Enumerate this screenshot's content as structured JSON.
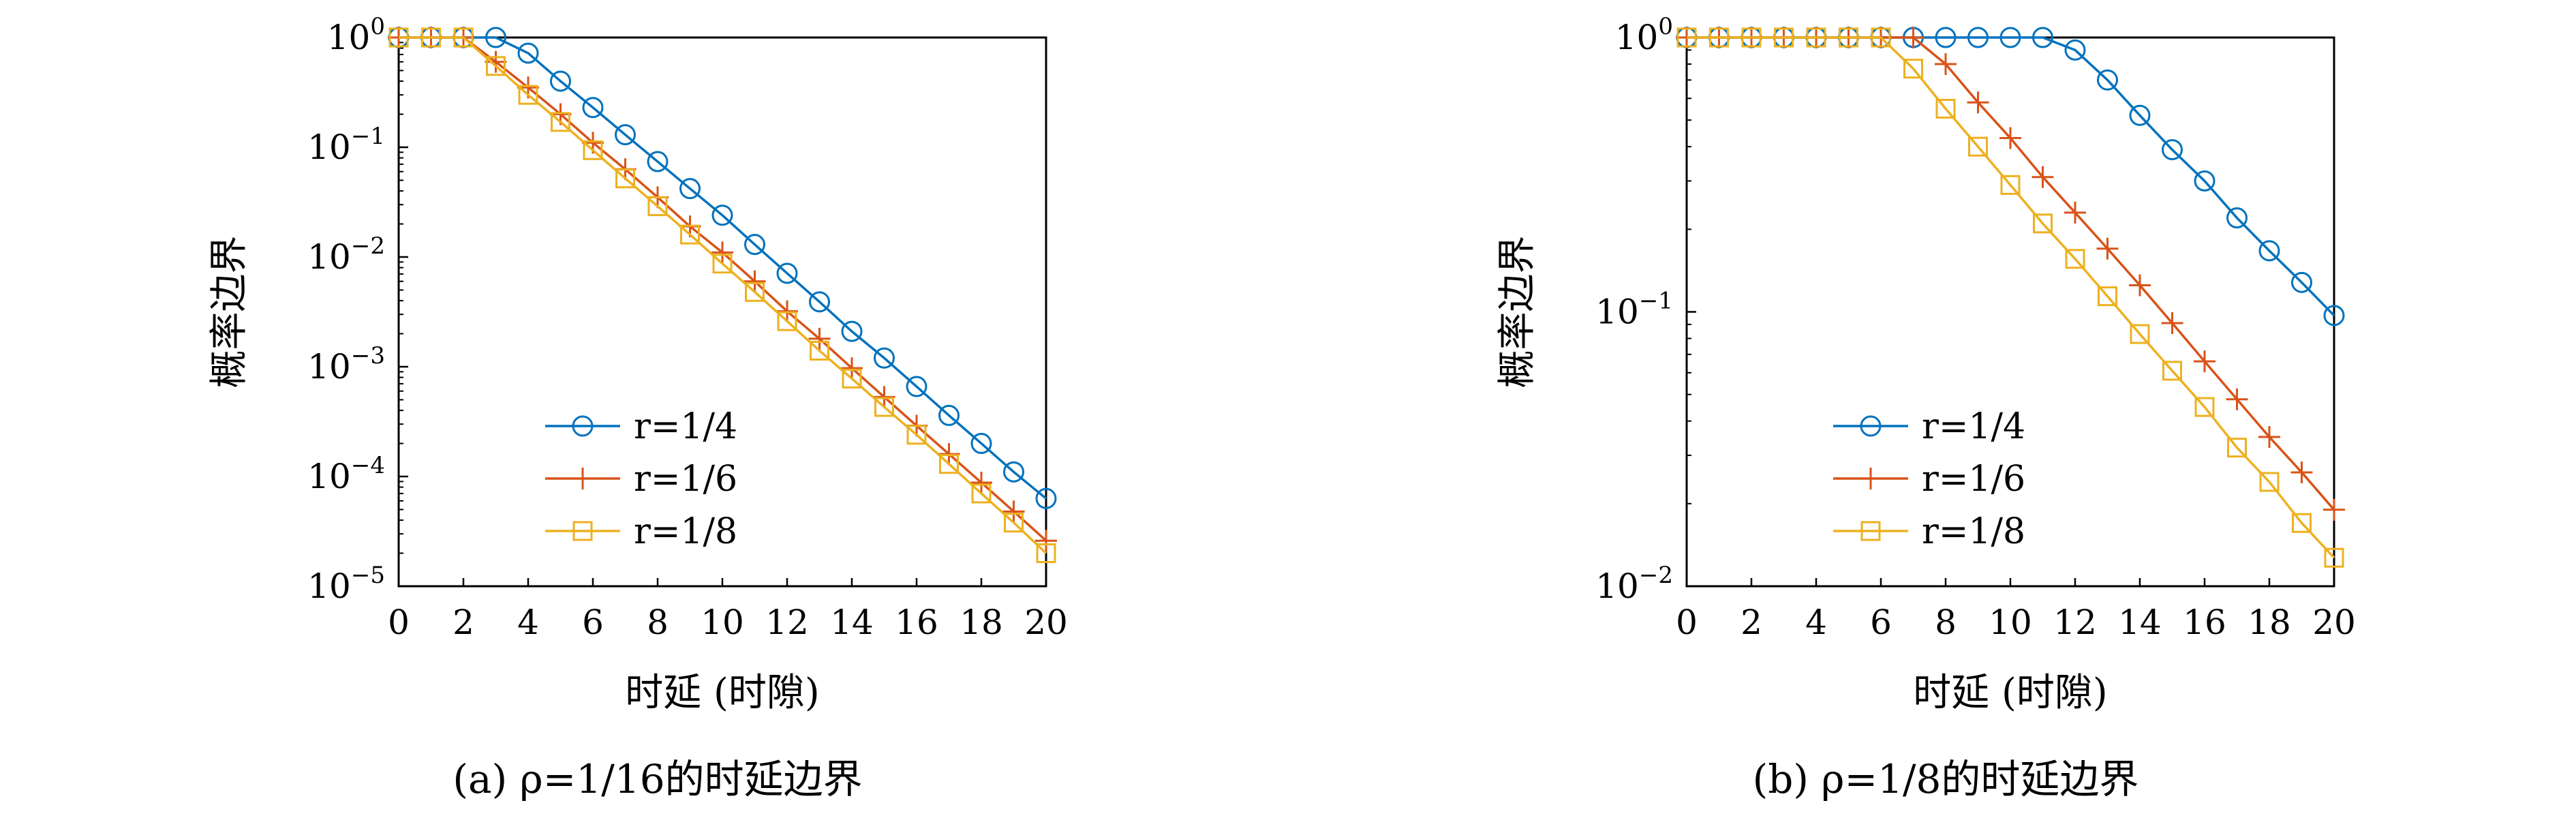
{
  "chart_data": [
    {
      "type": "line",
      "caption": "(a) ρ=1/16的时延边界",
      "xlabel": "时延 (时隙)",
      "ylabel": "概率边界",
      "xlim": [
        0,
        20
      ],
      "ylim": [
        1e-05,
        1
      ],
      "y_scale": "log",
      "x": [
        0,
        1,
        2,
        3,
        4,
        5,
        6,
        7,
        8,
        9,
        10,
        11,
        12,
        13,
        14,
        15,
        16,
        17,
        18,
        19,
        20
      ],
      "xticks": [
        0,
        2,
        4,
        6,
        8,
        10,
        12,
        14,
        16,
        18,
        20
      ],
      "yticks": [
        1e-05,
        0.0001,
        0.001,
        0.01,
        0.1,
        1
      ],
      "ytick_labels": [
        {
          "base": "10",
          "exp": "−5"
        },
        {
          "base": "10",
          "exp": "−4"
        },
        {
          "base": "10",
          "exp": "−3"
        },
        {
          "base": "10",
          "exp": "−2"
        },
        {
          "base": "10",
          "exp": "−1"
        },
        {
          "base": "10",
          "exp": "0"
        }
      ],
      "legend_position": "lower-left",
      "series": [
        {
          "name": "r=1/4",
          "marker": "circle",
          "color": "#0072BD",
          "values": [
            1,
            1,
            1,
            1,
            0.72,
            0.4,
            0.23,
            0.13,
            0.074,
            0.042,
            0.024,
            0.013,
            0.0071,
            0.0039,
            0.0021,
            0.0012,
            0.00066,
            0.00036,
            0.0002,
            0.00011,
            6.3e-05
          ]
        },
        {
          "name": "r=1/6",
          "marker": "plus",
          "color": "#D95319",
          "values": [
            1,
            1,
            1,
            0.6,
            0.35,
            0.2,
            0.11,
            0.063,
            0.035,
            0.019,
            0.011,
            0.006,
            0.0032,
            0.0018,
            0.00097,
            0.00053,
            0.00029,
            0.00016,
            8.8e-05,
            4.8e-05,
            2.6e-05
          ]
        },
        {
          "name": "r=1/8",
          "marker": "square",
          "color": "#EDB120",
          "values": [
            1,
            1,
            1,
            0.55,
            0.3,
            0.17,
            0.094,
            0.052,
            0.029,
            0.016,
            0.0087,
            0.0048,
            0.0026,
            0.0014,
            0.00078,
            0.00043,
            0.00024,
            0.00013,
            7e-05,
            3.8e-05,
            2e-05
          ]
        }
      ]
    },
    {
      "type": "line",
      "caption": "(b) ρ=1/8的时延边界",
      "xlabel": "时延 (时隙)",
      "ylabel": "概率边界",
      "xlim": [
        0,
        20
      ],
      "ylim": [
        0.01,
        1
      ],
      "y_scale": "log",
      "x": [
        0,
        1,
        2,
        3,
        4,
        5,
        6,
        7,
        8,
        9,
        10,
        11,
        12,
        13,
        14,
        15,
        16,
        17,
        18,
        19,
        20
      ],
      "xticks": [
        0,
        2,
        4,
        6,
        8,
        10,
        12,
        14,
        16,
        18,
        20
      ],
      "yticks": [
        0.01,
        0.1,
        1
      ],
      "ytick_labels": [
        {
          "base": "10",
          "exp": "−2"
        },
        {
          "base": "10",
          "exp": "−1"
        },
        {
          "base": "10",
          "exp": "0"
        }
      ],
      "legend_position": "lower-left",
      "series": [
        {
          "name": "r=1/4",
          "marker": "circle",
          "color": "#0072BD",
          "values": [
            1,
            1,
            1,
            1,
            1,
            1,
            1,
            1,
            1,
            1,
            1,
            1,
            0.9,
            0.7,
            0.52,
            0.39,
            0.3,
            0.22,
            0.167,
            0.128,
            0.097
          ]
        },
        {
          "name": "r=1/6",
          "marker": "plus",
          "color": "#D95319",
          "values": [
            1,
            1,
            1,
            1,
            1,
            1,
            1,
            1,
            0.8,
            0.58,
            0.43,
            0.31,
            0.23,
            0.17,
            0.125,
            0.091,
            0.066,
            0.048,
            0.035,
            0.026,
            0.019
          ]
        },
        {
          "name": "r=1/8",
          "marker": "square",
          "color": "#EDB120",
          "values": [
            1,
            1,
            1,
            1,
            1,
            1,
            1,
            0.77,
            0.55,
            0.4,
            0.29,
            0.21,
            0.156,
            0.114,
            0.083,
            0.061,
            0.045,
            0.032,
            0.024,
            0.017,
            0.0127
          ]
        }
      ]
    }
  ]
}
